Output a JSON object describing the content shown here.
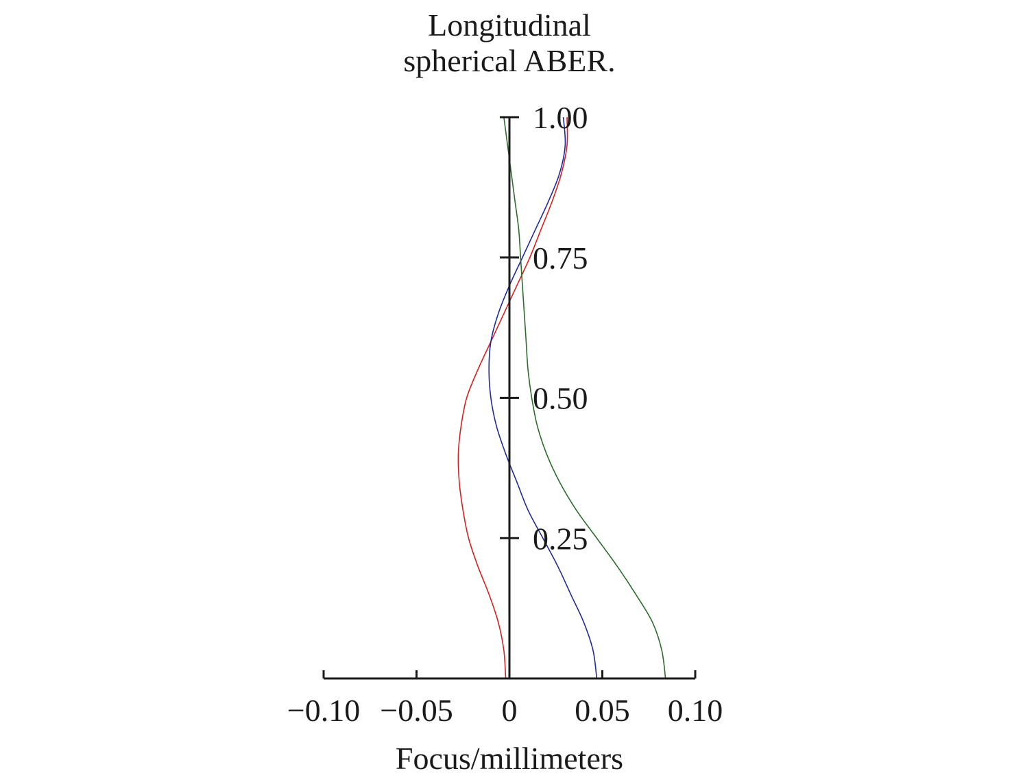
{
  "chart_data": {
    "type": "line",
    "title_lines": [
      "Longitudinal",
      "spherical ABER."
    ],
    "xlabel": "Focus/millimeters",
    "ylabel": "",
    "xlim": [
      -0.1,
      0.1
    ],
    "ylim": [
      0,
      1
    ],
    "x_ticks": [
      {
        "value": -0.1,
        "label": "−0.10"
      },
      {
        "value": -0.05,
        "label": "−0.05"
      },
      {
        "value": 0,
        "label": "0"
      },
      {
        "value": 0.05,
        "label": "0.05"
      },
      {
        "value": 0.1,
        "label": "0.10"
      }
    ],
    "y_ticks": [
      {
        "value": 0.25,
        "label": "0.25"
      },
      {
        "value": 0.5,
        "label": "0.50"
      },
      {
        "value": 0.75,
        "label": "0.75"
      },
      {
        "value": 1.0,
        "label": "1.00"
      }
    ],
    "grid": false,
    "series": [
      {
        "color": "#d62020",
        "points": [
          [
            -0.002,
            0
          ],
          [
            -0.003,
            0.05
          ],
          [
            -0.006,
            0.1
          ],
          [
            -0.011,
            0.15
          ],
          [
            -0.017,
            0.2
          ],
          [
            -0.022,
            0.25
          ],
          [
            -0.025,
            0.3
          ],
          [
            -0.027,
            0.35
          ],
          [
            -0.0275,
            0.4
          ],
          [
            -0.026,
            0.45
          ],
          [
            -0.023,
            0.5
          ],
          [
            -0.017,
            0.55
          ],
          [
            -0.01,
            0.6
          ],
          [
            -0.003,
            0.65
          ],
          [
            0.004,
            0.7
          ],
          [
            0.011,
            0.75
          ],
          [
            0.017,
            0.8
          ],
          [
            0.023,
            0.85
          ],
          [
            0.028,
            0.9
          ],
          [
            0.031,
            0.95
          ],
          [
            0.031,
            1.0
          ]
        ]
      },
      {
        "color": "#1f2a9a",
        "points": [
          [
            0.047,
            0
          ],
          [
            0.045,
            0.05
          ],
          [
            0.04,
            0.1
          ],
          [
            0.033,
            0.15
          ],
          [
            0.026,
            0.2
          ],
          [
            0.018,
            0.25
          ],
          [
            0.01,
            0.3
          ],
          [
            0.004,
            0.35
          ],
          [
            -0.002,
            0.4
          ],
          [
            -0.007,
            0.45
          ],
          [
            -0.01,
            0.5
          ],
          [
            -0.011,
            0.55
          ],
          [
            -0.01,
            0.6
          ],
          [
            -0.006,
            0.65
          ],
          [
            0.0,
            0.7
          ],
          [
            0.007,
            0.75
          ],
          [
            0.014,
            0.8
          ],
          [
            0.021,
            0.85
          ],
          [
            0.027,
            0.9
          ],
          [
            0.03,
            0.95
          ],
          [
            0.029,
            1.0
          ]
        ]
      },
      {
        "color": "#2e6b2e",
        "points": [
          [
            0.084,
            0
          ],
          [
            0.082,
            0.05
          ],
          [
            0.077,
            0.1
          ],
          [
            0.068,
            0.15
          ],
          [
            0.058,
            0.2
          ],
          [
            0.047,
            0.25
          ],
          [
            0.036,
            0.3
          ],
          [
            0.027,
            0.35
          ],
          [
            0.02,
            0.4
          ],
          [
            0.015,
            0.45
          ],
          [
            0.012,
            0.5
          ],
          [
            0.01,
            0.55
          ],
          [
            0.009,
            0.6
          ],
          [
            0.008,
            0.65
          ],
          [
            0.007,
            0.7
          ],
          [
            0.006,
            0.75
          ],
          [
            0.005,
            0.8
          ],
          [
            0.003,
            0.85
          ],
          [
            0.001,
            0.9
          ],
          [
            -0.001,
            0.95
          ],
          [
            -0.003,
            1.0
          ]
        ]
      }
    ]
  }
}
